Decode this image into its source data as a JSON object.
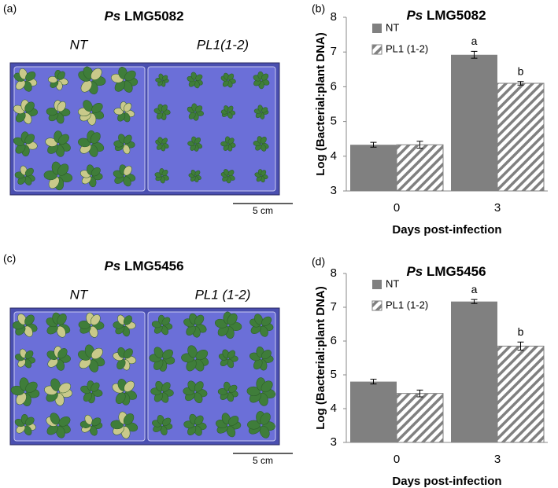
{
  "panels": [
    {
      "label": "(a)",
      "title_prefix": "Ps",
      "title": "LMG5082",
      "left_label": "NT",
      "right_label": "PL1(1-2)",
      "scale": "5 cm"
    },
    {
      "label": "(c)",
      "title_prefix": "Ps",
      "title": "LMG5456",
      "left_label": "NT",
      "right_label": "PL1 (1-2)",
      "scale": "5 cm"
    }
  ],
  "chart_data": [
    {
      "type": "bar",
      "panel_label": "(b)",
      "title_prefix": "Ps",
      "title": "LMG5082",
      "x_label": "Days post-infection",
      "y_label": "Log (Bacterial:plant DNA)",
      "categories": [
        "0",
        "3"
      ],
      "ylim": [
        3,
        8
      ],
      "yticks": [
        3,
        4,
        5,
        6,
        7,
        8
      ],
      "legend": "top-left",
      "series": [
        {
          "name": "NT",
          "color": "#808080",
          "values": [
            4.33,
            6.92
          ],
          "errors": [
            0.07,
            0.1
          ],
          "letters": [
            null,
            "a"
          ]
        },
        {
          "name": "PL1 (1-2)",
          "color": "#808080",
          "pattern": "hatch",
          "values": [
            4.33,
            6.1
          ],
          "errors": [
            0.1,
            0.05
          ],
          "letters": [
            null,
            "b"
          ]
        }
      ]
    },
    {
      "type": "bar",
      "panel_label": "(d)",
      "title_prefix": "Ps",
      "title": "LMG5456",
      "x_label": "Days post-infection",
      "y_label": "Log (Bacterial:plant DNA)",
      "categories": [
        "0",
        "3"
      ],
      "ylim": [
        3,
        8
      ],
      "yticks": [
        3,
        4,
        5,
        6,
        7,
        8
      ],
      "legend": "top-left",
      "series": [
        {
          "name": "NT",
          "color": "#808080",
          "values": [
            4.8,
            7.17
          ],
          "errors": [
            0.07,
            0.06
          ],
          "letters": [
            null,
            "a"
          ]
        },
        {
          "name": "PL1 (1-2)",
          "color": "#808080",
          "pattern": "hatch",
          "values": [
            4.45,
            5.85
          ],
          "errors": [
            0.1,
            0.12
          ],
          "letters": [
            null,
            "b"
          ]
        }
      ]
    }
  ]
}
